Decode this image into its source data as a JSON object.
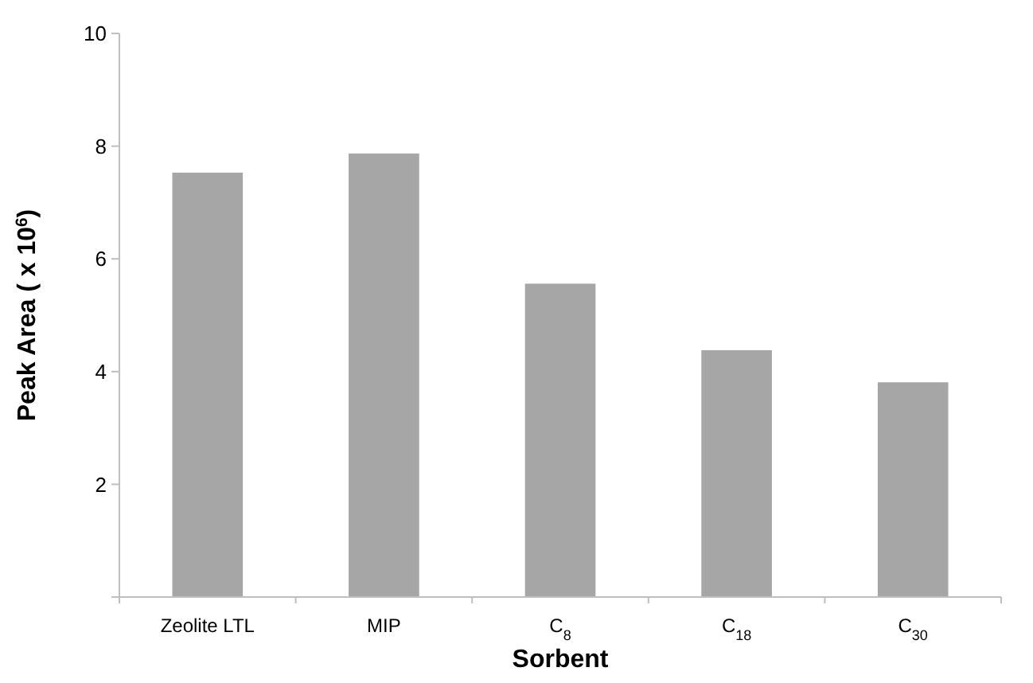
{
  "chart_data": {
    "type": "bar",
    "xlabel": "Sorbent",
    "ylabel": "Peak Area ( x 10$^{6}$)",
    "categories": [
      "Zeolite LTL",
      "MIP",
      "C$_{8}$",
      "C$_{18}$",
      "C$_{30}$"
    ],
    "values": [
      7.53,
      7.87,
      5.56,
      4.38,
      3.81
    ],
    "color": "#a6a6a6",
    "ylim": [
      0,
      10
    ],
    "yticks": [
      {
        "value": 0,
        "label": null
      },
      2,
      4,
      6,
      8,
      10
    ],
    "grid": false
  }
}
